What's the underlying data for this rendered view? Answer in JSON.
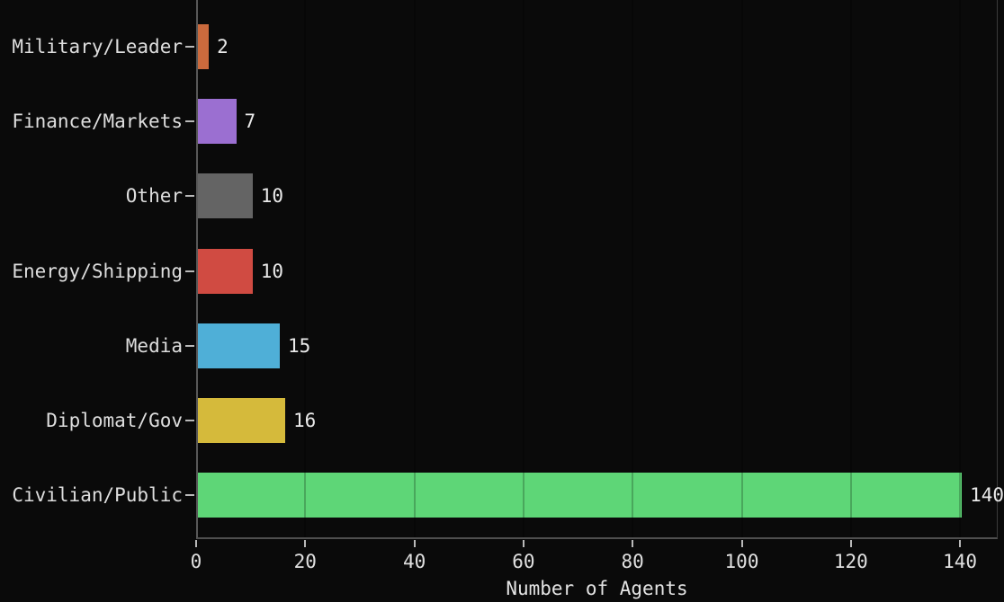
{
  "chart_data": {
    "type": "bar",
    "orientation": "horizontal",
    "title": "",
    "xlabel": "Number of Agents",
    "ylabel": "",
    "categories": [
      "Military/Leader",
      "Finance/Markets",
      "Other",
      "Energy/Shipping",
      "Media",
      "Diplomat/Gov",
      "Civilian/Public"
    ],
    "values": [
      2,
      7,
      10,
      10,
      15,
      16,
      140
    ],
    "value_labels": [
      "2",
      "7",
      "10",
      "10",
      "15",
      "16",
      "140"
    ],
    "bar_colors": [
      "#cb6a3d",
      "#9b6fd1",
      "#646464",
      "#d04b42",
      "#4fafd7",
      "#d5ba3b",
      "#5ed677"
    ],
    "x_ticks": [
      0,
      20,
      40,
      60,
      80,
      100,
      120,
      140
    ],
    "xlim": [
      0,
      146.9
    ],
    "grid": "vertical gridlines every 20, drawn subtly over bars",
    "legend": "none",
    "colors": {
      "background": "#0a0a0a",
      "text": "#e0e0e0",
      "spine": "#555555",
      "tick": "#b9b9b9"
    }
  }
}
